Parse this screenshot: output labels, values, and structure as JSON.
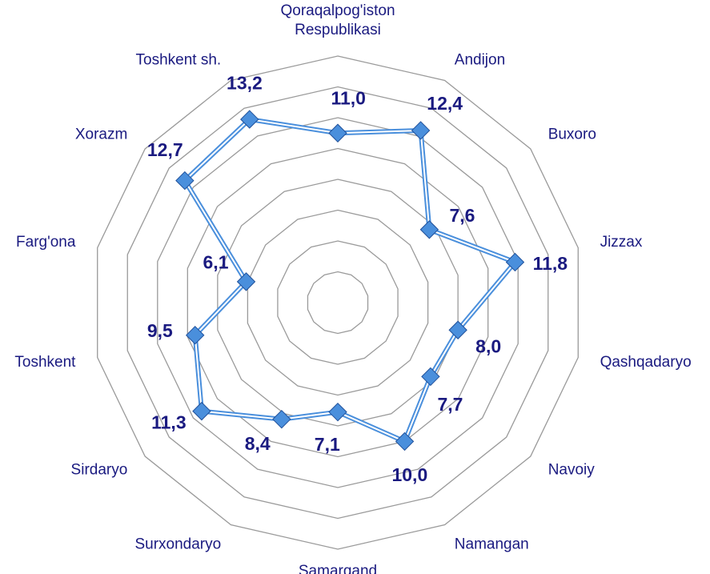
{
  "chart_data": {
    "type": "radar",
    "categories": [
      "Qoraqalpog'iston\nRespublikasi",
      "Andijon",
      "Buxoro",
      "Jizzax",
      "Qashqadaryo",
      "Navoiy",
      "Namangan",
      "Samarqand",
      "Surxondaryo",
      "Sirdaryo",
      "Toshkent",
      "Farg'ona",
      "Xorazm",
      "Toshkent sh."
    ],
    "values": [
      11.0,
      12.4,
      7.6,
      11.8,
      8.0,
      7.7,
      10.0,
      7.1,
      8.4,
      11.3,
      9.5,
      6.1,
      12.7,
      13.2
    ],
    "value_labels": [
      "11,0",
      "12,4",
      "7,6",
      "11,8",
      "8,0",
      "7,7",
      "10,0",
      "7,1",
      "8,4",
      "11,3",
      "9,5",
      "6,1",
      "12,7",
      "13,2"
    ],
    "color": "#4a8fdc",
    "ylim": [
      0,
      16
    ],
    "yticks": [
      0,
      2,
      4,
      6,
      8,
      10,
      12,
      14,
      16
    ],
    "grid": true
  }
}
